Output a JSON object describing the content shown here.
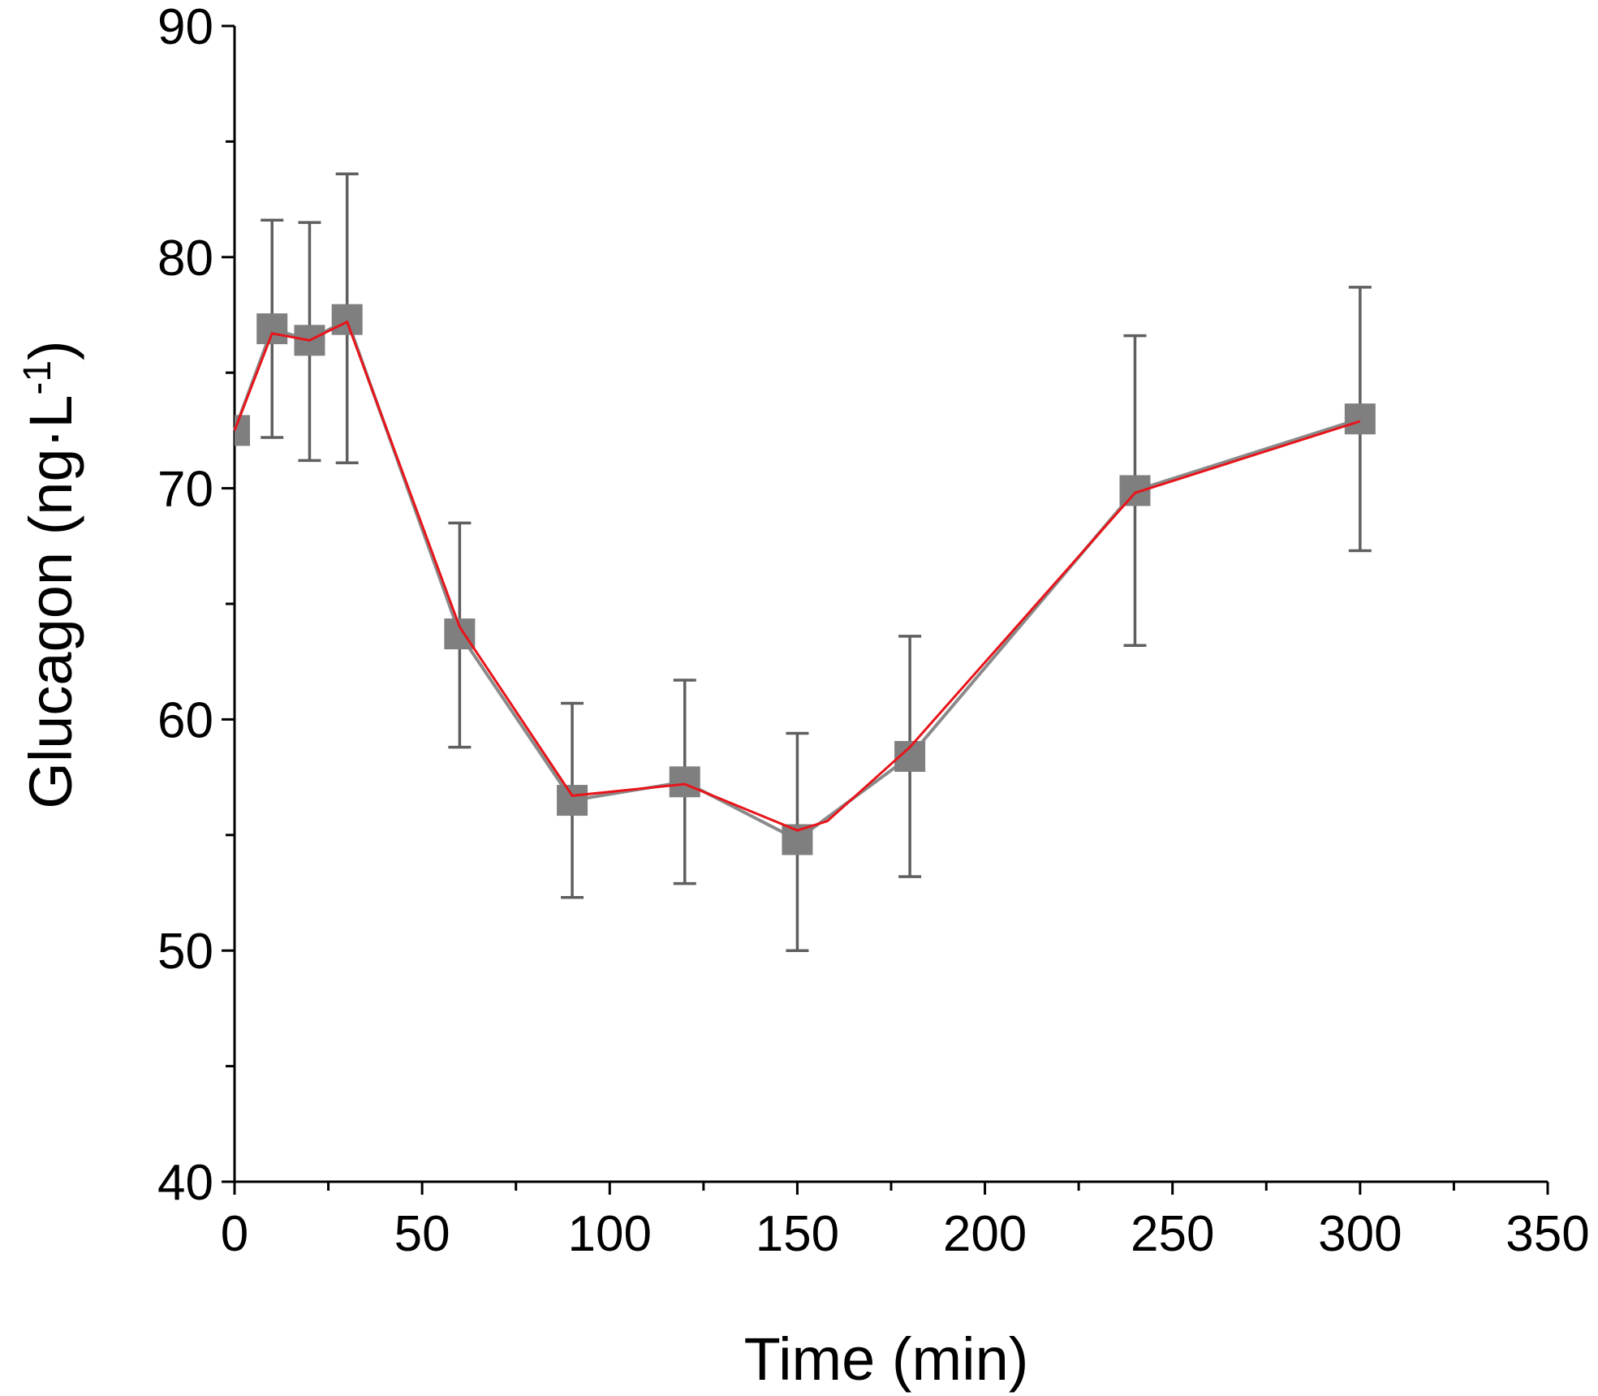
{
  "chart_data": {
    "type": "line",
    "title": "",
    "xlabel": "Time (min)",
    "ylabel_main": "Glucagon (ng·L",
    "ylabel_sup": "-1",
    "ylabel_close": ")",
    "xlim": [
      0,
      350
    ],
    "ylim": [
      40,
      90
    ],
    "xticks": [
      0,
      50,
      100,
      150,
      200,
      250,
      300,
      350
    ],
    "xtick_labels": [
      "0",
      "50",
      "100",
      "150",
      "200",
      "250",
      "300",
      "350"
    ],
    "yticks": [
      40,
      50,
      60,
      70,
      80,
      90
    ],
    "ytick_labels": [
      "40",
      "50",
      "60",
      "70",
      "80",
      "90"
    ],
    "x_minor_step": 25,
    "y_minor_step": 5,
    "grid": false,
    "legend": "none",
    "series": [
      {
        "name": "Glucagon",
        "marker": "square",
        "color": "#7f7f7f",
        "line_color": "#e8141a",
        "x": [
          0,
          10,
          20,
          30,
          60,
          90,
          120,
          150,
          180,
          240,
          300
        ],
        "y": [
          72.5,
          76.9,
          76.4,
          77.3,
          63.7,
          56.5,
          57.3,
          54.8,
          58.4,
          69.9,
          73.0
        ],
        "err_upper": [
          null,
          81.6,
          81.5,
          83.6,
          68.5,
          60.7,
          61.7,
          59.4,
          63.6,
          76.6,
          78.7
        ],
        "err_lower": [
          null,
          72.2,
          71.2,
          71.1,
          58.8,
          52.3,
          52.9,
          50.0,
          53.2,
          63.2,
          67.3
        ]
      }
    ],
    "fit_line": {
      "x": [
        0,
        10,
        20,
        30,
        60,
        90,
        120,
        150,
        158,
        180,
        240,
        300
      ],
      "y": [
        72.5,
        76.7,
        76.4,
        77.2,
        64.0,
        56.7,
        57.2,
        55.2,
        55.6,
        58.8,
        69.8,
        72.9
      ]
    }
  }
}
